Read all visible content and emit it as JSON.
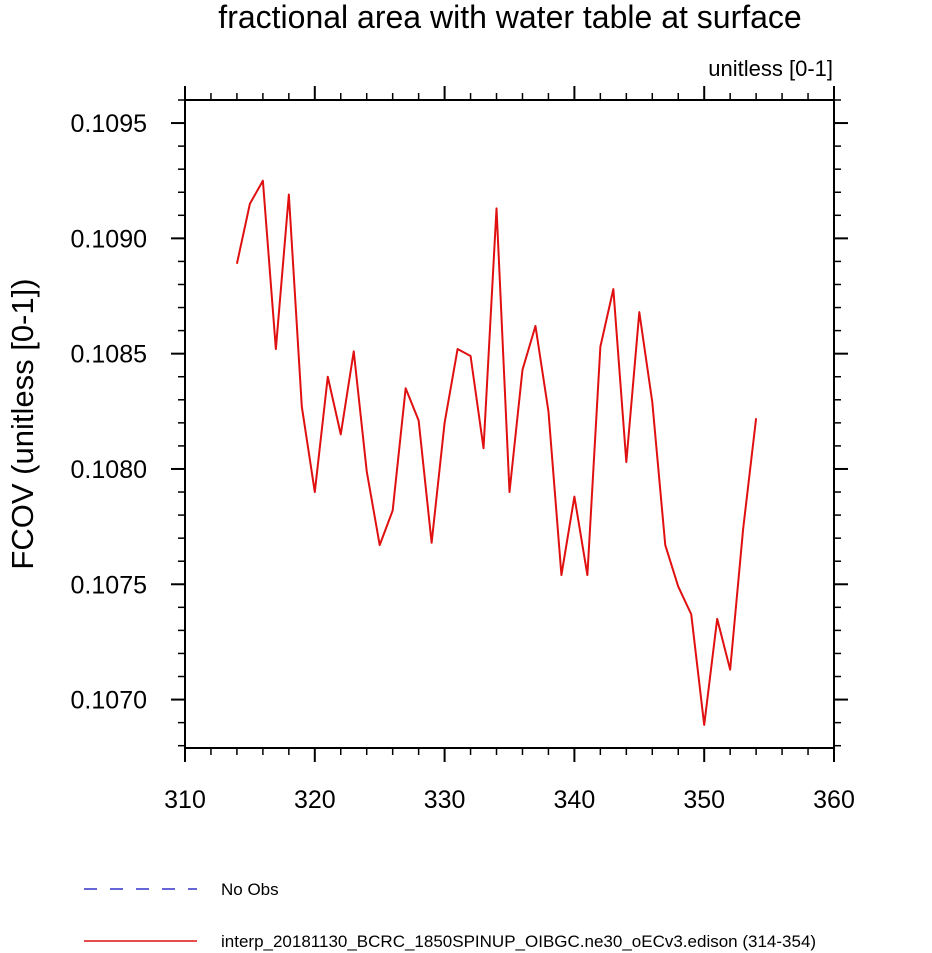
{
  "chart_data": {
    "type": "line",
    "title": "fractional area with water table at surface",
    "units_label": "unitless [0-1]",
    "xlabel": "",
    "ylabel": "FCOV  (unitless [0-1])",
    "xlim": [
      310,
      360
    ],
    "ylim": [
      0.10679,
      0.1096
    ],
    "x_ticks": [
      310,
      320,
      330,
      340,
      350,
      360
    ],
    "x_tick_labels": [
      "310",
      "320",
      "330",
      "340",
      "350",
      "360"
    ],
    "x_minor_step": 2,
    "y_ticks": [
      0.107,
      0.1075,
      0.108,
      0.1085,
      0.109,
      0.1095
    ],
    "y_tick_labels": [
      "0.1070",
      "0.1075",
      "0.1080",
      "0.1085",
      "0.1090",
      "0.1095"
    ],
    "y_minor_step": 0.0001,
    "series": [
      {
        "name": "No Obs",
        "color": "#3333cc",
        "dashed": true,
        "x": [],
        "values": []
      },
      {
        "name": "interp_20181130_BCRC_1850SPINUP_OIBGC.ne30_oECv3.edison (314-354)",
        "color": "#e01010",
        "dashed": false,
        "x": [
          314,
          315,
          316,
          317,
          318,
          319,
          320,
          321,
          322,
          323,
          324,
          325,
          326,
          327,
          328,
          329,
          330,
          331,
          332,
          333,
          334,
          335,
          336,
          337,
          338,
          339,
          340,
          341,
          342,
          343,
          344,
          345,
          346,
          347,
          348,
          349,
          350,
          351,
          352,
          353,
          354
        ],
        "values": [
          0.10889,
          0.10915,
          0.10925,
          0.10852,
          0.10919,
          0.10827,
          0.1079,
          0.1084,
          0.10815,
          0.10851,
          0.10799,
          0.10767,
          0.10782,
          0.10835,
          0.10821,
          0.10768,
          0.1082,
          0.10852,
          0.10849,
          0.10809,
          0.10913,
          0.1079,
          0.10843,
          0.10862,
          0.10825,
          0.10754,
          0.10788,
          0.10754,
          0.10853,
          0.10878,
          0.10803,
          0.10868,
          0.10829,
          0.10767,
          0.10749,
          0.10737,
          0.10689,
          0.10735,
          0.10713,
          0.10774,
          0.10822
        ]
      }
    ],
    "legend_position": "bottom-left"
  }
}
